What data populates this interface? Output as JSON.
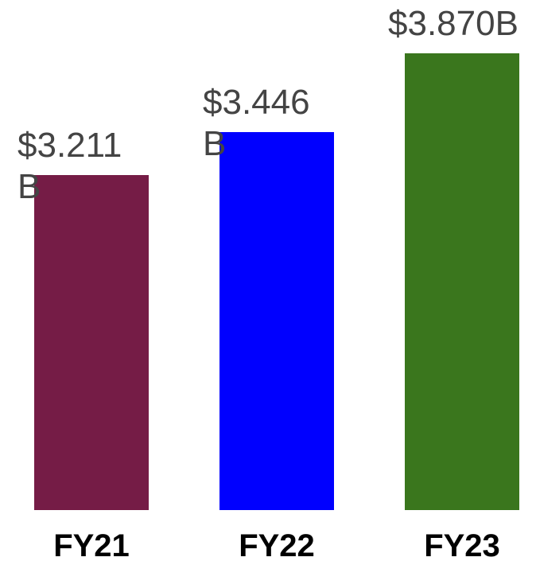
{
  "chart_data": {
    "type": "bar",
    "categories": [
      "FY21",
      "FY22",
      "FY23"
    ],
    "values": [
      3.211,
      3.446,
      3.87
    ],
    "value_labels": [
      "$3.211B",
      "$3.446B",
      "$3.870B"
    ],
    "colors": [
      "#751c46",
      "#0000ff",
      "#3a761d"
    ],
    "ylim": [
      1.4,
      3.9
    ]
  }
}
